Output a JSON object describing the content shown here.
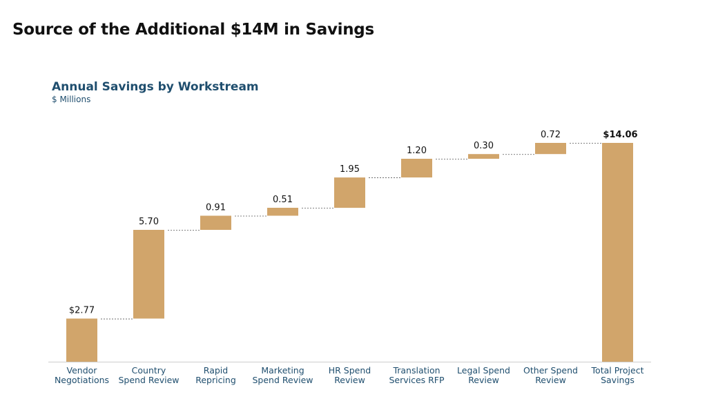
{
  "page": {
    "title": "Source of the Additional $14M in Savings"
  },
  "chart_data": {
    "type": "bar",
    "subtype": "waterfall",
    "title": "Annual Savings by Workstream",
    "subtitle": "$ Millions",
    "categories": [
      [
        "Vendor",
        "Negotiations"
      ],
      [
        "Country",
        "Spend Review"
      ],
      [
        "Rapid",
        "Repricing"
      ],
      [
        "Marketing",
        "Spend Review"
      ],
      [
        "HR Spend",
        "Review"
      ],
      [
        "Translation",
        "Services RFP"
      ],
      [
        "Legal Spend",
        "Review"
      ],
      [
        "Other Spend",
        "Review"
      ],
      [
        "Total Project",
        "Savings"
      ]
    ],
    "values": [
      2.77,
      5.7,
      0.91,
      0.51,
      1.95,
      1.2,
      0.3,
      0.72,
      14.06
    ],
    "value_labels": [
      "$2.77",
      "5.70",
      "0.91",
      "0.51",
      "1.95",
      "1.20",
      "0.30",
      "0.72",
      "$14.06"
    ],
    "total_index": 8,
    "ylim": [
      0,
      14.06
    ],
    "grid": false,
    "legend": "none",
    "colors": {
      "bar": "#d1a56b",
      "axis": "#cccccc",
      "connector": "#555555",
      "category_text": "#1f4e6e",
      "title_text": "#1f4e6e"
    }
  }
}
